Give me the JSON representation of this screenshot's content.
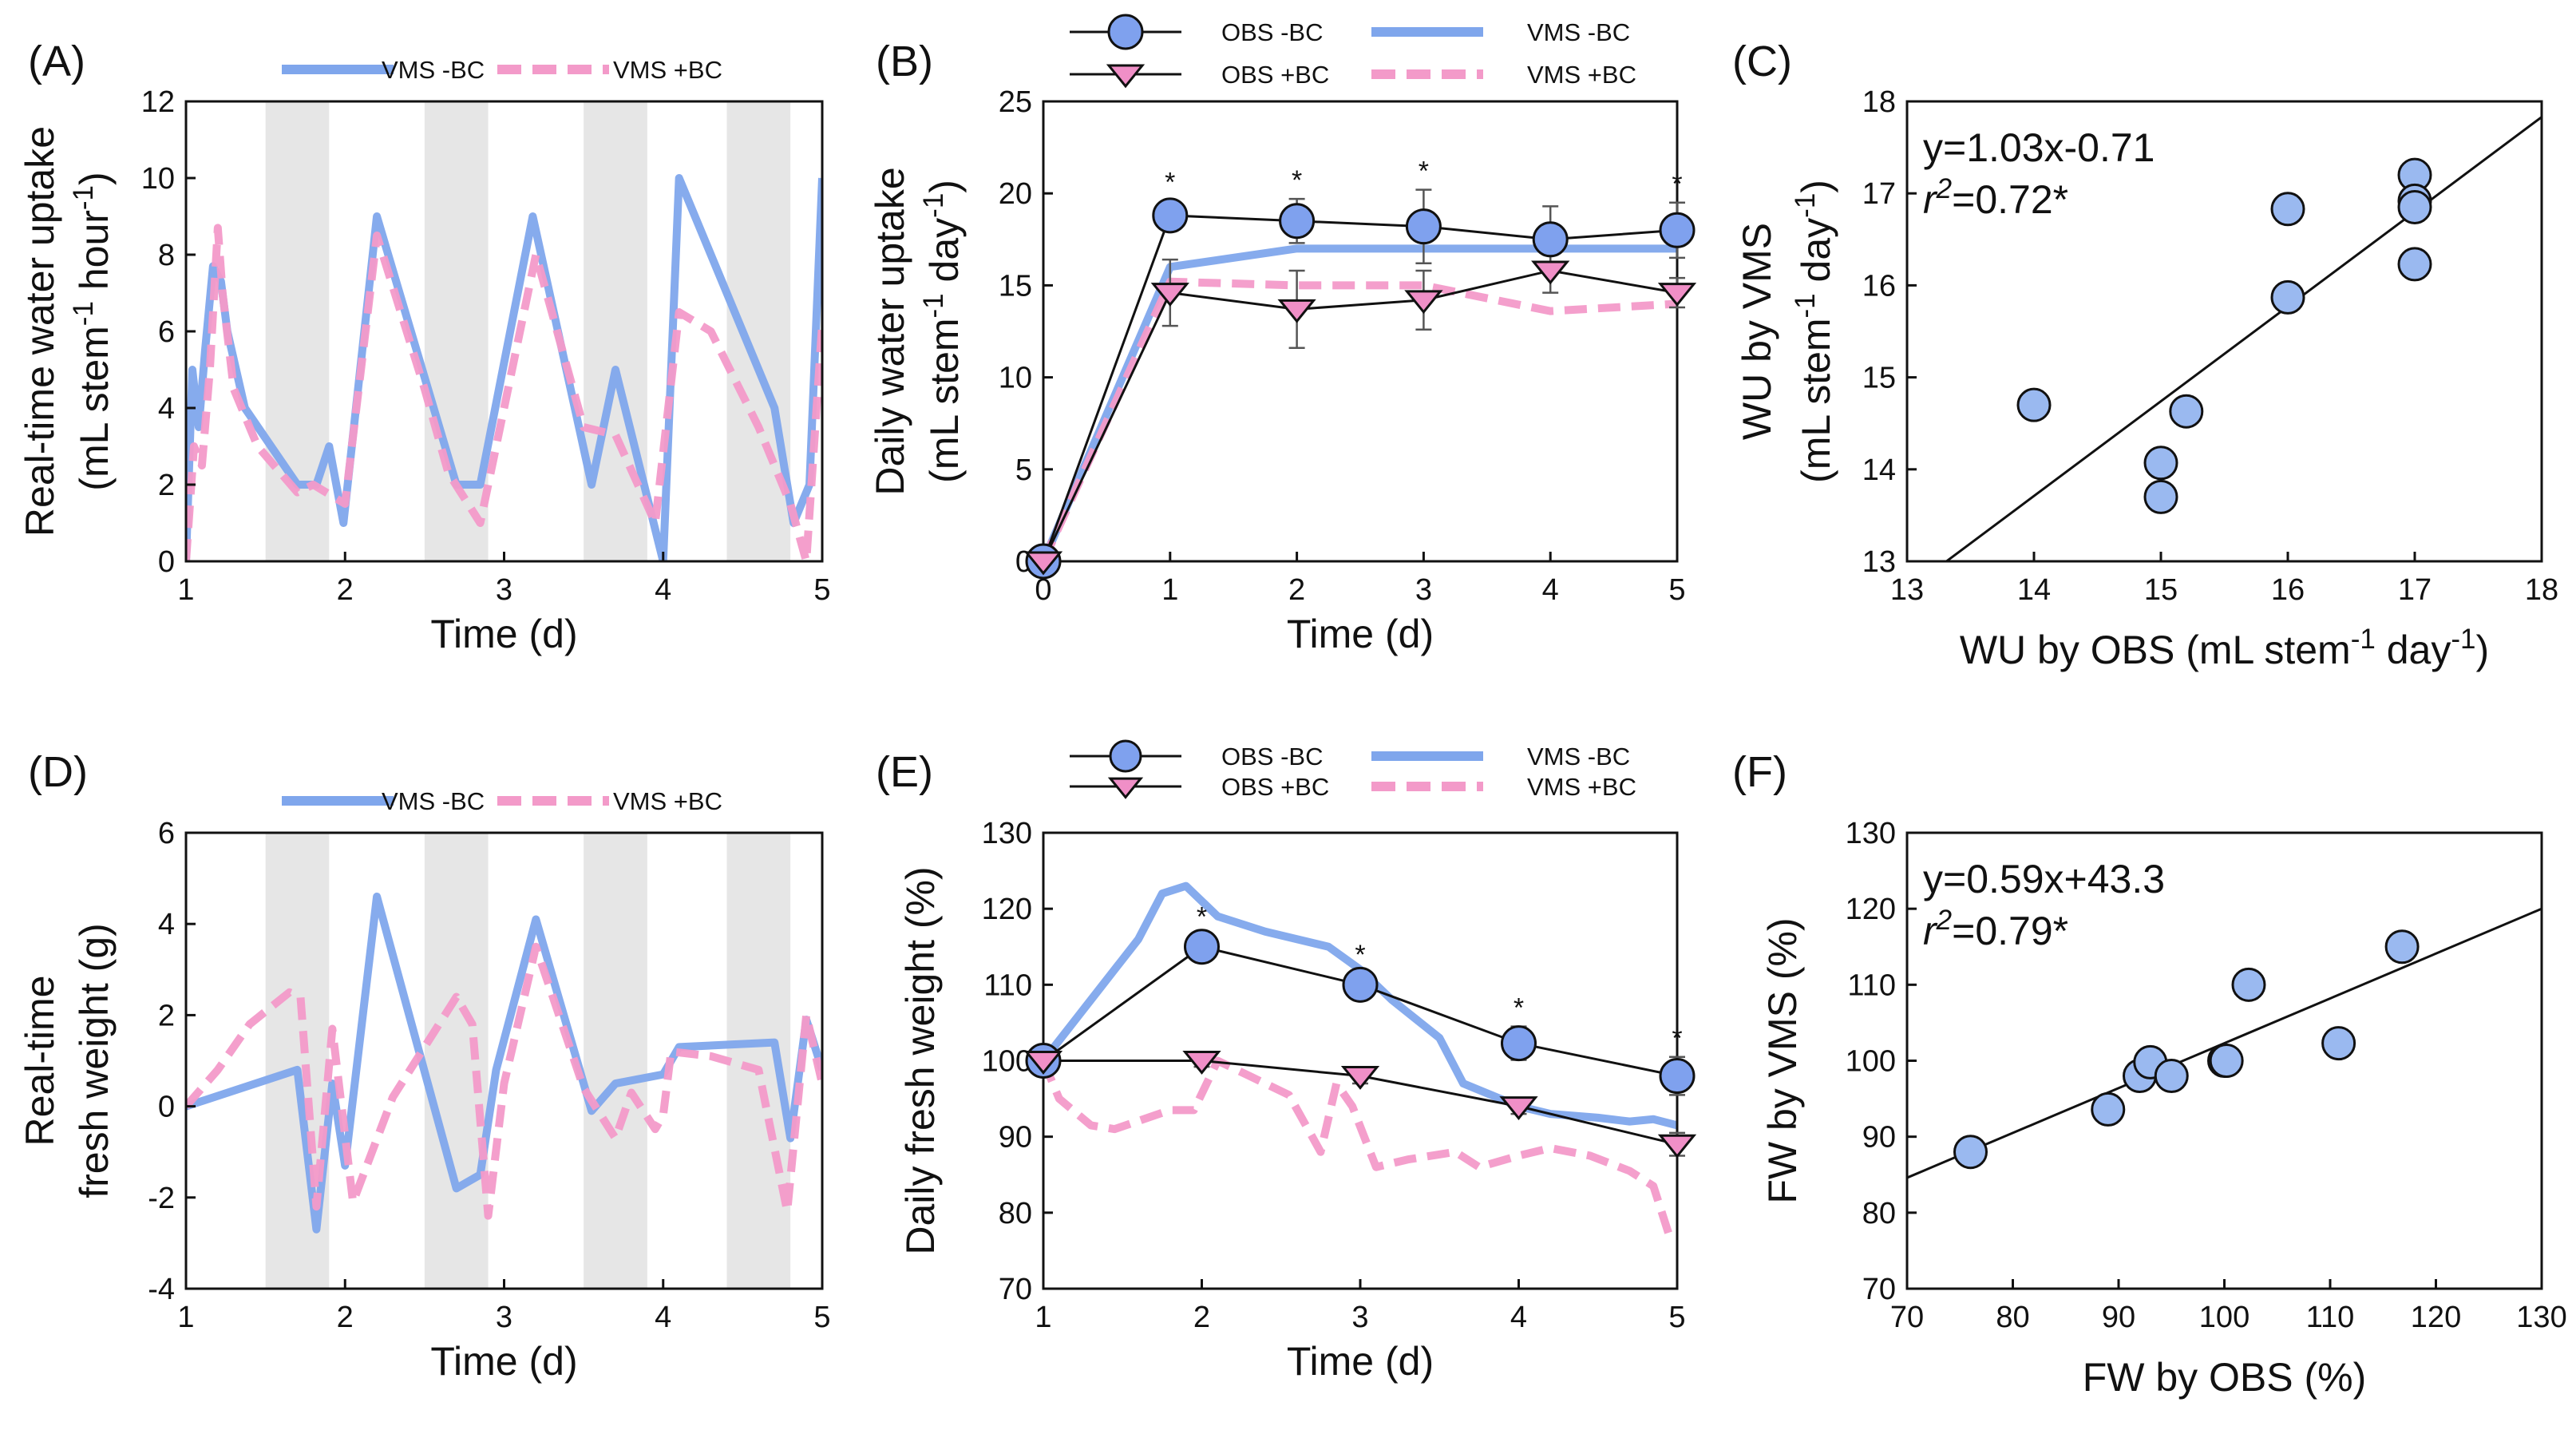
{
  "figure": {
    "panels": [
      "(A)",
      "(B)",
      "(C)",
      "(D)",
      "(E)",
      "(F)"
    ]
  },
  "colors": {
    "vms_minus_bc": "#7fa6ec",
    "vms_plus_bc": "#f39ac9",
    "obs_minus_bc_fill": "#7fa1ee",
    "obs_plus_bc_fill": "#f08fc7",
    "night": "#e6e6e6",
    "scatter_fill": "#9ab9f0"
  },
  "chart_data": [
    {
      "id": "A",
      "type": "line",
      "label": "(A)",
      "xlabel": "Time (d)",
      "ylabel_line1": "Real-time water uptake",
      "ylabel_line2": "(mL stem⁻¹ hour⁻¹)",
      "xlim": [
        1,
        5
      ],
      "ylim": [
        0,
        12
      ],
      "xticks": [
        1,
        2,
        3,
        4,
        5
      ],
      "yticks": [
        0,
        2,
        4,
        6,
        8,
        10,
        12
      ],
      "night_bands": [
        [
          1.5,
          1.9
        ],
        [
          2.5,
          2.9
        ],
        [
          3.5,
          3.9
        ],
        [
          4.4,
          4.8
        ]
      ],
      "legend": [
        "VMS -BC",
        "VMS +BC"
      ],
      "series": [
        {
          "name": "VMS -BC",
          "style": "solid",
          "x": [
            1,
            1.04,
            1.08,
            1.12,
            1.17,
            1.22,
            1.26,
            1.37,
            1.7,
            1.82,
            1.9,
            1.99,
            2.2,
            2.7,
            2.85,
            3.18,
            3.55,
            3.7,
            4.0,
            4.1,
            4.7,
            4.82,
            4.92,
            5
          ],
          "y": [
            0,
            5,
            3.5,
            5.5,
            7.7,
            7.3,
            6,
            4,
            2,
            2,
            3,
            1,
            9,
            2,
            2,
            9,
            2,
            5,
            0,
            10,
            4,
            1,
            2,
            10
          ]
        },
        {
          "name": "VMS +BC",
          "style": "dashed",
          "x": [
            1,
            1.05,
            1.1,
            1.15,
            1.2,
            1.23,
            1.3,
            1.45,
            1.7,
            1.8,
            2.0,
            2.2,
            2.5,
            2.65,
            2.85,
            3.2,
            3.5,
            3.7,
            3.95,
            4.1,
            4.3,
            4.6,
            4.8,
            4.9,
            5
          ],
          "y": [
            0,
            3,
            2.5,
            5,
            8.7,
            7,
            4.5,
            3,
            1.8,
            2,
            1.5,
            8.5,
            4.5,
            2.3,
            1,
            8,
            3.5,
            3.3,
            1,
            6.5,
            6,
            3.5,
            1.5,
            0,
            6.2
          ]
        }
      ]
    },
    {
      "id": "B",
      "type": "line",
      "label": "(B)",
      "xlabel": "Time (d)",
      "ylabel_line1": "Daily water uptake",
      "ylabel_line2": "(mL stem⁻¹ day⁻¹)",
      "xlim": [
        0,
        5
      ],
      "ylim": [
        0,
        25
      ],
      "xticks": [
        0,
        1,
        2,
        3,
        4,
        5
      ],
      "yticks": [
        0,
        5,
        10,
        15,
        20,
        25
      ],
      "legend": [
        "OBS -BC",
        "OBS +BC",
        "VMS -BC",
        "VMS +BC"
      ],
      "significance": [
        1,
        2,
        3,
        5
      ],
      "significance_mark": "*",
      "series": [
        {
          "name": "OBS -BC",
          "marker": "circle",
          "x": [
            0,
            1,
            2,
            3,
            4,
            5
          ],
          "y": [
            0,
            18.8,
            18.5,
            18.2,
            17.5,
            18
          ],
          "err": [
            0,
            0.8,
            1.2,
            2,
            1.8,
            1.5
          ]
        },
        {
          "name": "OBS +BC",
          "marker": "triangle",
          "x": [
            0,
            1,
            2,
            3,
            4,
            5
          ],
          "y": [
            0,
            14.6,
            13.7,
            14.2,
            15.8,
            14.6
          ],
          "err": [
            0,
            1.8,
            2.1,
            1.6,
            1.2,
            0.8
          ]
        },
        {
          "name": "VMS -BC",
          "style": "solid",
          "x": [
            0,
            1,
            2,
            3,
            4,
            5
          ],
          "y": [
            0,
            16,
            17,
            17,
            17,
            17
          ]
        },
        {
          "name": "VMS +BC",
          "style": "dashed",
          "x": [
            0,
            1,
            2,
            3,
            4,
            5
          ],
          "y": [
            0,
            15.2,
            15,
            15,
            13.6,
            14
          ]
        }
      ]
    },
    {
      "id": "C",
      "type": "scatter",
      "label": "(C)",
      "xlabel": "WU by OBS (mL stem⁻¹ day⁻¹)",
      "ylabel_line1": "WU by VMS",
      "ylabel_line2": "(mL stem⁻¹ day⁻¹)",
      "xlim": [
        13,
        18
      ],
      "ylim": [
        13,
        18
      ],
      "xticks": [
        13,
        14,
        15,
        16,
        17,
        18
      ],
      "yticks": [
        13,
        14,
        15,
        16,
        17,
        18
      ],
      "equation": "y=1.03x-0.71",
      "r2_text": "=0.72*",
      "fit": {
        "slope": 1.03,
        "intercept": -0.71
      },
      "points": {
        "x": [
          14,
          15,
          15,
          15.2,
          16,
          16,
          17,
          17,
          17,
          17
        ],
        "y": [
          14.7,
          14.07,
          13.7,
          14.63,
          15.87,
          16.83,
          17.2,
          16.92,
          16.85,
          16.23
        ]
      }
    },
    {
      "id": "D",
      "type": "line",
      "label": "(D)",
      "xlabel": "Time (d)",
      "ylabel_line1": "Real-time",
      "ylabel_line2": "fresh weight (g)",
      "xlim": [
        1,
        5
      ],
      "ylim": [
        -4,
        6
      ],
      "xticks": [
        1,
        2,
        3,
        4,
        5
      ],
      "yticks": [
        -4,
        -2,
        0,
        2,
        4,
        6
      ],
      "night_bands": [
        [
          1.5,
          1.9
        ],
        [
          2.5,
          2.9
        ],
        [
          3.5,
          3.9
        ],
        [
          4.4,
          4.8
        ]
      ],
      "legend": [
        "VMS -BC",
        "VMS +BC"
      ],
      "series": [
        {
          "name": "VMS -BC",
          "style": "solid",
          "x": [
            1,
            1.7,
            1.82,
            1.92,
            2.0,
            2.2,
            2.7,
            2.85,
            2.95,
            3.2,
            3.55,
            3.7,
            4.0,
            4.1,
            4.7,
            4.8,
            4.9,
            5
          ],
          "y": [
            0,
            0.8,
            -2.7,
            0.5,
            -1.3,
            4.6,
            -1.8,
            -1.5,
            0.8,
            4.1,
            -0.1,
            0.5,
            0.7,
            1.3,
            1.4,
            -0.7,
            1.9,
            0.8
          ]
        },
        {
          "name": "VMS +BC",
          "style": "dashed",
          "x": [
            1,
            1.2,
            1.4,
            1.65,
            1.72,
            1.82,
            1.92,
            2.05,
            2.3,
            2.7,
            2.8,
            2.9,
            3.0,
            3.2,
            3.5,
            3.7,
            3.8,
            3.95,
            4.0,
            4.05,
            4.3,
            4.6,
            4.78,
            4.9,
            5
          ],
          "y": [
            0,
            0.8,
            1.8,
            2.5,
            2.4,
            -2.2,
            1.7,
            -2.1,
            0.2,
            2.4,
            1.8,
            -2.4,
            0.5,
            3.5,
            0.4,
            -0.7,
            0.3,
            -0.5,
            -0.2,
            1.2,
            1.1,
            0.8,
            -2.3,
            2.0,
            0.5
          ]
        }
      ]
    },
    {
      "id": "E",
      "type": "line",
      "label": "(E)",
      "xlabel": "Time (d)",
      "ylabel_line1": "Daily fresh weight (%)",
      "xlim": [
        1,
        5
      ],
      "ylim": [
        70,
        130
      ],
      "xticks": [
        1,
        2,
        3,
        4,
        5
      ],
      "yticks": [
        70,
        80,
        90,
        100,
        110,
        120,
        130
      ],
      "legend": [
        "OBS -BC",
        "OBS +BC",
        "VMS -BC",
        "VMS +BC"
      ],
      "significance": [
        2,
        3,
        4,
        5
      ],
      "significance_mark": "*",
      "series": [
        {
          "name": "OBS -BC",
          "marker": "circle",
          "x": [
            1,
            2,
            3,
            4,
            5
          ],
          "y": [
            100,
            115,
            110,
            102.3,
            98
          ],
          "err": [
            0,
            1.5,
            1.5,
            2.2,
            2.5
          ]
        },
        {
          "name": "OBS +BC",
          "marker": "triangle",
          "x": [
            1,
            2,
            3,
            4,
            5
          ],
          "y": [
            100,
            100,
            98,
            94,
            89
          ],
          "err": [
            0,
            0.8,
            1,
            1,
            1.5
          ]
        },
        {
          "name": "VMS -BC",
          "style": "solid",
          "x": [
            1,
            1.3,
            1.6,
            1.75,
            1.9,
            2.1,
            2.4,
            2.6,
            2.8,
            3.0,
            3.2,
            3.5,
            3.65,
            4.0,
            4.2,
            4.5,
            4.7,
            4.85,
            5
          ],
          "y": [
            100,
            108,
            116,
            122,
            123,
            119,
            117,
            116,
            115,
            112,
            108,
            103,
            97,
            94,
            93,
            92.5,
            92,
            92.3,
            91.5
          ]
        },
        {
          "name": "VMS +BC",
          "style": "dashed",
          "x": [
            1,
            1.1,
            1.3,
            1.45,
            1.8,
            1.95,
            2.1,
            2.3,
            2.55,
            2.75,
            2.85,
            2.95,
            3.1,
            3.3,
            3.6,
            3.75,
            4.0,
            4.2,
            4.45,
            4.7,
            4.85,
            4.95,
            5
          ],
          "y": [
            100,
            95,
            91.5,
            91,
            93.5,
            93.5,
            100,
            98,
            95.5,
            88,
            97,
            94,
            86,
            87,
            88,
            86,
            87.5,
            88.5,
            87.5,
            85.5,
            83.5,
            77,
            77
          ]
        }
      ]
    },
    {
      "id": "F",
      "type": "scatter",
      "label": "(F)",
      "xlabel": "FW by OBS (%)",
      "ylabel_line1": "FW by VMS (%)",
      "xlim": [
        70,
        130
      ],
      "ylim": [
        70,
        130
      ],
      "xticks": [
        70,
        80,
        90,
        100,
        110,
        120,
        130
      ],
      "yticks": [
        70,
        80,
        90,
        100,
        110,
        120,
        130
      ],
      "equation": "y=0.59x+43.3",
      "r2_text": "=0.79*",
      "fit": {
        "slope": 0.59,
        "intercept": 43.3
      },
      "points": {
        "x": [
          76,
          89,
          92,
          93,
          95,
          100,
          100.2,
          102.3,
          110.8,
          116.8
        ],
        "y": [
          88,
          93.6,
          98,
          99.8,
          98,
          100,
          100,
          110,
          102.3,
          115
        ]
      }
    }
  ]
}
